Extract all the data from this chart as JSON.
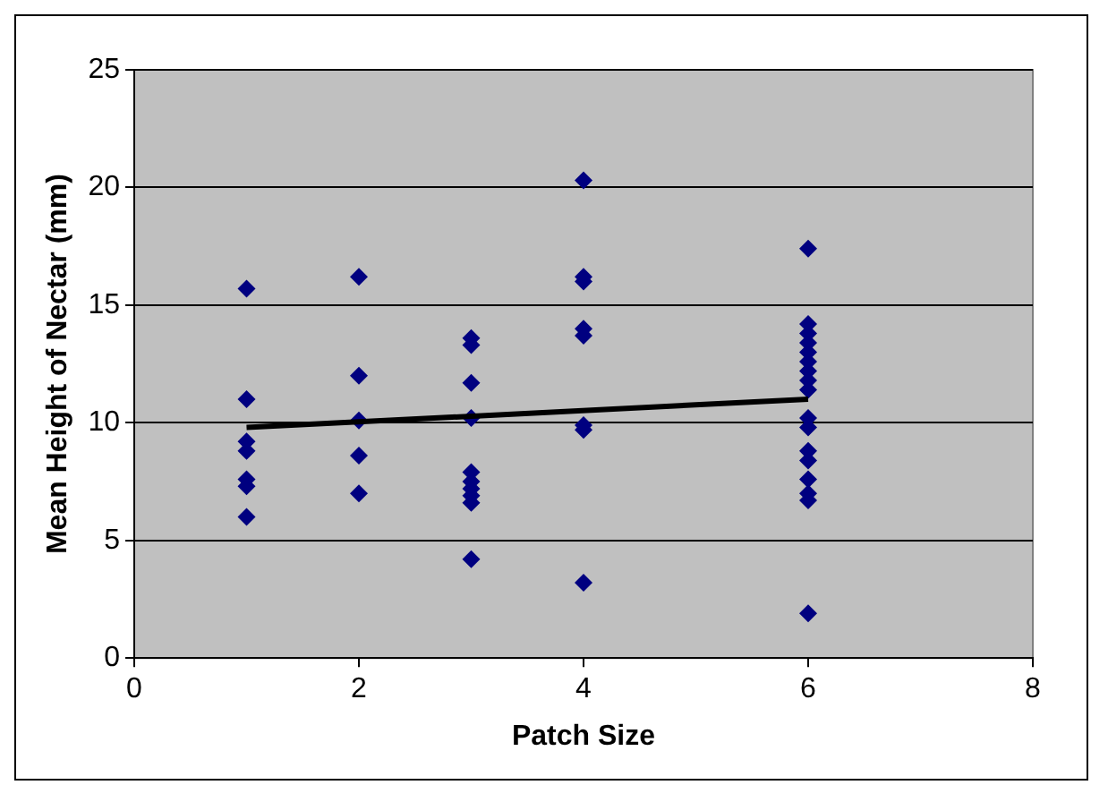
{
  "chart_data": {
    "type": "scatter",
    "xlabel": "Patch Size",
    "ylabel": "Mean Height of Nectar (mm)",
    "xlim": [
      0,
      8
    ],
    "xticks": [
      0,
      2,
      4,
      6,
      8
    ],
    "ylim": [
      0,
      25
    ],
    "yticks": [
      0,
      5,
      10,
      15,
      20,
      25
    ],
    "grid": "y",
    "legend": false,
    "marker": "diamond",
    "series": [
      {
        "color": "#000080",
        "x": [
          1,
          1,
          1,
          1,
          1,
          1,
          1,
          2,
          2,
          2,
          2,
          2,
          3,
          3,
          3,
          3,
          3,
          3,
          3,
          3,
          3,
          3,
          4,
          4,
          4,
          4,
          4,
          4,
          4,
          4,
          6,
          6,
          6,
          6,
          6,
          6,
          6,
          6,
          6,
          6,
          6,
          6,
          6,
          6,
          6,
          6,
          6
        ],
        "values": [
          15.7,
          11.0,
          9.2,
          8.8,
          7.6,
          7.3,
          6.0,
          16.2,
          12.0,
          10.1,
          8.6,
          7.0,
          13.6,
          13.3,
          11.7,
          10.2,
          7.9,
          7.5,
          7.2,
          6.9,
          6.6,
          4.2,
          20.3,
          16.2,
          16.0,
          14.0,
          13.7,
          9.9,
          9.7,
          3.2,
          17.4,
          14.2,
          13.8,
          13.4,
          13.0,
          12.6,
          12.2,
          11.8,
          11.4,
          10.2,
          9.8,
          8.8,
          8.4,
          7.6,
          7.0,
          6.7,
          1.9
        ]
      },
      {
        "type": "line",
        "color": "#000000",
        "marker": "none",
        "x": [
          1,
          6
        ],
        "values": [
          9.8,
          11.0
        ]
      }
    ]
  }
}
